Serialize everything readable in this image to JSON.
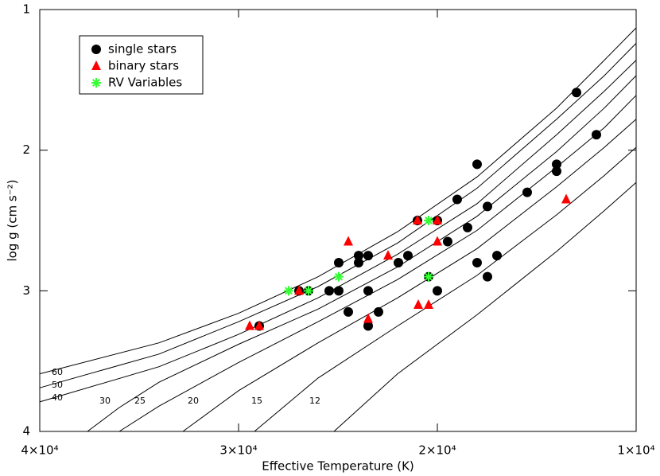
{
  "chart_data": {
    "type": "scatter",
    "x_label": "Effective Temperature (K)",
    "y_label": "log g (cm s⁻²)",
    "xlim": [
      40000,
      10000
    ],
    "ylim": [
      1,
      4
    ],
    "xticks": [
      {
        "value": 40000,
        "label": "4×10⁴"
      },
      {
        "value": 30000,
        "label": "3×10⁴"
      },
      {
        "value": 20000,
        "label": "2×10⁴"
      },
      {
        "value": 10000,
        "label": "1×10⁴"
      }
    ],
    "yticks": [
      1,
      2,
      3,
      4
    ],
    "legend": "top-left",
    "series": [
      {
        "name": "single stars",
        "color": "#000000",
        "marker": "circle",
        "x": [
          13000,
          12000,
          18000,
          14000,
          14000,
          15480,
          19000,
          17480,
          18480,
          21000,
          20000,
          19480,
          23480,
          23960,
          24960,
          23960,
          21480,
          21960,
          18000,
          17480,
          17000,
          26960,
          26480,
          25440,
          24960,
          23480,
          20000,
          20440,
          24480,
          22960,
          23480,
          28960
        ],
        "values": [
          1.59,
          1.89,
          2.1,
          2.1,
          2.15,
          2.3,
          2.35,
          2.4,
          2.55,
          2.5,
          2.5,
          2.65,
          2.75,
          2.75,
          2.8,
          2.8,
          2.75,
          2.8,
          2.8,
          2.9,
          2.75,
          3.0,
          3.0,
          3.0,
          3.0,
          3.0,
          3.0,
          2.9,
          3.15,
          3.15,
          3.25,
          3.25
        ]
      },
      {
        "name": "binary stars",
        "color": "#ff0000",
        "marker": "triangle",
        "x": [
          24480,
          22480,
          21000,
          20000,
          20000,
          26960,
          29440,
          28960,
          23480,
          20960,
          20440,
          13520
        ],
        "values": [
          2.65,
          2.75,
          2.5,
          2.5,
          2.65,
          3.0,
          3.25,
          3.25,
          3.2,
          3.1,
          3.1,
          2.35
        ]
      },
      {
        "name": "RV Variables",
        "color": "#33ff33",
        "marker": "asterisk",
        "x": [
          27480,
          26480,
          24960,
          20440,
          20440
        ],
        "values": [
          3.0,
          3.0,
          2.9,
          2.5,
          2.9
        ]
      }
    ],
    "tracks": [
      {
        "label": "60",
        "x": [
          40000,
          34000,
          30000,
          26000,
          22000,
          18000,
          14000,
          11600,
          10000
        ],
        "y": [
          3.59,
          3.37,
          3.16,
          2.9,
          2.58,
          2.19,
          1.7,
          1.36,
          1.13
        ]
      },
      {
        "label": "50",
        "x": [
          40000,
          34000,
          30000,
          26000,
          22000,
          18000,
          14000,
          11600,
          10000
        ],
        "y": [
          3.69,
          3.45,
          3.22,
          2.97,
          2.66,
          2.27,
          1.78,
          1.47,
          1.24
        ]
      },
      {
        "label": "40",
        "x": [
          40000,
          34000,
          30000,
          26000,
          22000,
          18000,
          14000,
          11600,
          10000
        ],
        "y": [
          3.79,
          3.54,
          3.31,
          3.05,
          2.74,
          2.38,
          1.89,
          1.58,
          1.36
        ]
      },
      {
        "label": "30",
        "x": [
          37600,
          36000,
          34000,
          30000,
          26000,
          22000,
          18000,
          14000,
          11600,
          10000
        ],
        "y": [
          4.0,
          3.83,
          3.65,
          3.38,
          3.13,
          2.83,
          2.47,
          2.01,
          1.7,
          1.47
        ]
      },
      {
        "label": "25",
        "x": [
          36000,
          34000,
          30000,
          26000,
          22000,
          18000,
          14000,
          11600,
          10000
        ],
        "y": [
          4.0,
          3.82,
          3.51,
          3.22,
          2.92,
          2.57,
          2.12,
          1.84,
          1.61
        ]
      },
      {
        "label": "20",
        "x": [
          32800,
          30000,
          26000,
          22000,
          18000,
          14000,
          11600,
          10000
        ],
        "y": [
          4.0,
          3.71,
          3.37,
          3.05,
          2.7,
          2.26,
          1.98,
          1.78
        ]
      },
      {
        "label": "15",
        "x": [
          29200,
          26000,
          22000,
          18000,
          14000,
          11600,
          10000
        ],
        "y": [
          4.0,
          3.62,
          3.25,
          2.89,
          2.46,
          2.18,
          1.98
        ]
      },
      {
        "label": "12",
        "x": [
          25200,
          22000,
          18000,
          14000,
          11600,
          10000
        ],
        "y": [
          4.0,
          3.59,
          3.17,
          2.72,
          2.43,
          2.23
        ]
      }
    ]
  }
}
